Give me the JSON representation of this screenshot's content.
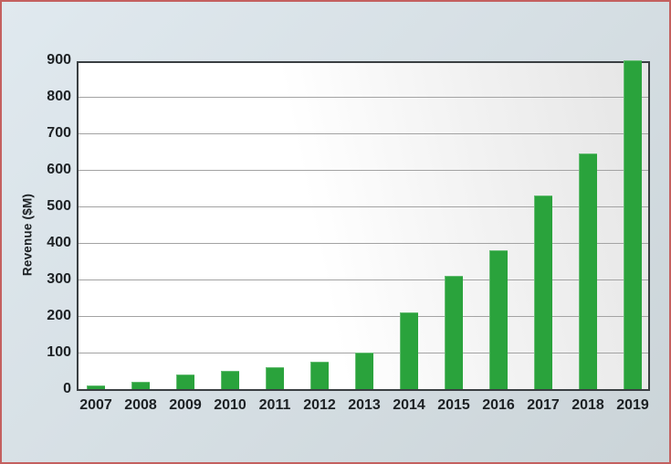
{
  "chart_data": {
    "type": "bar",
    "title": "",
    "categories": [
      "2007",
      "2008",
      "2009",
      "2010",
      "2011",
      "2012",
      "2013",
      "2014",
      "2015",
      "2016",
      "2017",
      "2018",
      "2019"
    ],
    "values": [
      10,
      20,
      40,
      50,
      60,
      75,
      100,
      210,
      310,
      380,
      530,
      645,
      900
    ],
    "xlabel": "",
    "ylabel": "Revenue ($M)",
    "ylim": [
      0,
      900
    ],
    "yticks": [
      0,
      100,
      200,
      300,
      400,
      500,
      600,
      700,
      800,
      900
    ],
    "grid": "horizontal-major-only",
    "legend": "none",
    "colors": {
      "bar": "#2aa33c",
      "plot_border": "#3a3f42",
      "gridline": "#a3a3a3",
      "frame_border": "#c4605f",
      "card_background": "#d5dee3",
      "text": "#1d2124"
    }
  }
}
